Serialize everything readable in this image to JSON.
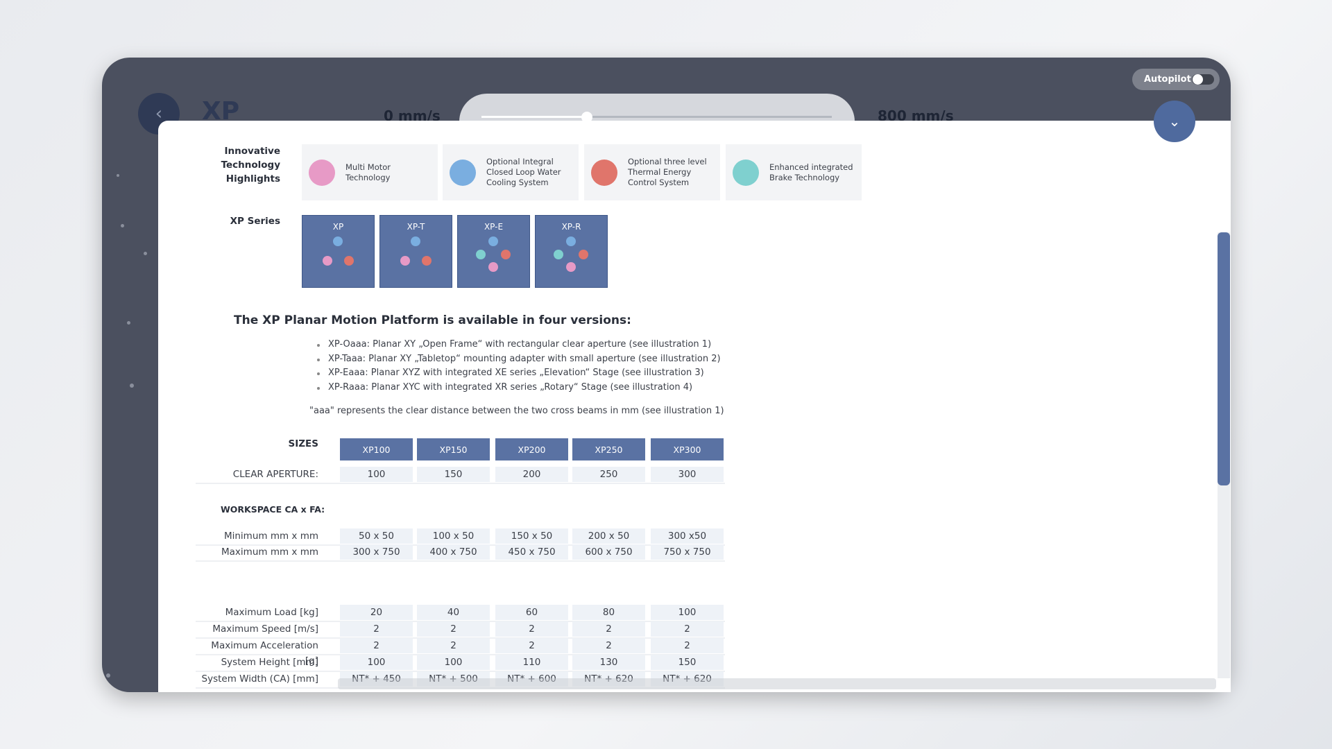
{
  "header": {
    "title": "XP",
    "speed_min": "0 mm/s",
    "speed_max": "800 mm/s",
    "autopilot": "Autopilot"
  },
  "highlights": {
    "label": "Innovative Technology Highlights",
    "items": [
      "Multi Motor Technology",
      "Optional Integral Closed Loop Water Cooling System",
      "Optional three level Thermal Energy Control System",
      "Enhanced integrated Brake Technology"
    ]
  },
  "series": {
    "label": "XP Series",
    "items": [
      "XP",
      "XP-T",
      "XP-E",
      "XP-R"
    ]
  },
  "intro": {
    "heading": "The XP Planar Motion Platform is available in four versions:",
    "bullets": [
      "XP-Oaaa: Planar XY „Open Frame“ with rectangular clear aperture (see illustration 1)",
      "XP-Taaa: Planar XY „Tabletop“ mounting adapter with small aperture (see illustration 2)",
      "XP-Eaaa: Planar XYZ with integrated XE series „Elevation“ Stage (see illustration 3)",
      "XP-Raaa: Planar XYC with integrated XR series „Rotary“ Stage (see illustration 4)"
    ],
    "note": "\"aaa\" represents the clear distance between the two cross beams in mm (see illustration 1)"
  },
  "table": {
    "sizes_label": "SIZES",
    "sizes": [
      "XP100",
      "XP150",
      "XP200",
      "XP250",
      "XP300"
    ],
    "aperture": {
      "label": "CLEAR APERTURE:",
      "values": [
        100,
        150,
        200,
        250,
        300
      ]
    },
    "workspace_label": "WORKSPACE CA x FA:",
    "workspace": [
      {
        "label": "Minimum mm x mm",
        "values": [
          "50 x 50",
          "100 x 50",
          "150 x 50",
          "200 x 50",
          "300 x50"
        ]
      },
      {
        "label": "Maximum mm x mm",
        "values": [
          "300 x 750",
          "400 x 750",
          "450 x 750",
          "600 x 750",
          "750 x 750"
        ]
      }
    ],
    "specs": [
      {
        "label": "Maximum Load [kg]",
        "values": [
          20,
          40,
          60,
          80,
          100
        ]
      },
      {
        "label": "Maximum Speed [m/s]",
        "values": [
          2,
          2,
          2,
          2,
          2
        ]
      },
      {
        "label": "Maximum Acceleration [g]",
        "values": [
          2,
          2,
          2,
          2,
          2
        ]
      },
      {
        "label": "System Height [mm]",
        "values": [
          100,
          100,
          110,
          130,
          150
        ]
      },
      {
        "label": "System Width (CA) [mm]",
        "values": [
          "NT* + 450",
          "NT* + 500",
          "NT* + 600",
          "NT* + 620",
          "NT* + 620"
        ]
      }
    ]
  }
}
